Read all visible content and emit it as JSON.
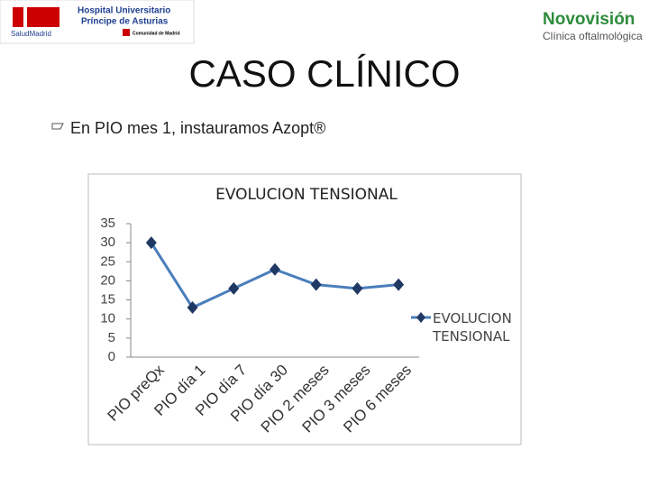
{
  "header": {
    "hospital_line1": "Hospital Universitario",
    "hospital_line2": "Príncipe de Asturias",
    "salud": "SaludMadrid",
    "comunidad": "Comunidad de Madrid",
    "clinic": "Novovisión",
    "clinic_sub": "Clínica oftalmológica"
  },
  "slide": {
    "title": "CASO CLÍNICO",
    "bullet": "En PIO mes 1, instauramos Azopt®"
  },
  "chart_data": {
    "type": "line",
    "title": "EVOLUCION TENSIONAL",
    "categories": [
      "PIO preQx",
      "PIO día 1",
      "PIO día 7",
      "PIO día 30",
      "PIO 2 meses",
      "PIO 3 meses",
      "PIO 6 meses"
    ],
    "series": [
      {
        "name": "EVOLUCION TENSIONAL",
        "color": "#4a7ebb",
        "marker_color": "#1f3864",
        "values": [
          30,
          13,
          18,
          23,
          19,
          18,
          19
        ]
      }
    ],
    "ylim": [
      0,
      35
    ],
    "yticks": [
      0,
      5,
      10,
      15,
      20,
      25,
      30,
      35
    ],
    "grid": false,
    "legend": "right"
  }
}
